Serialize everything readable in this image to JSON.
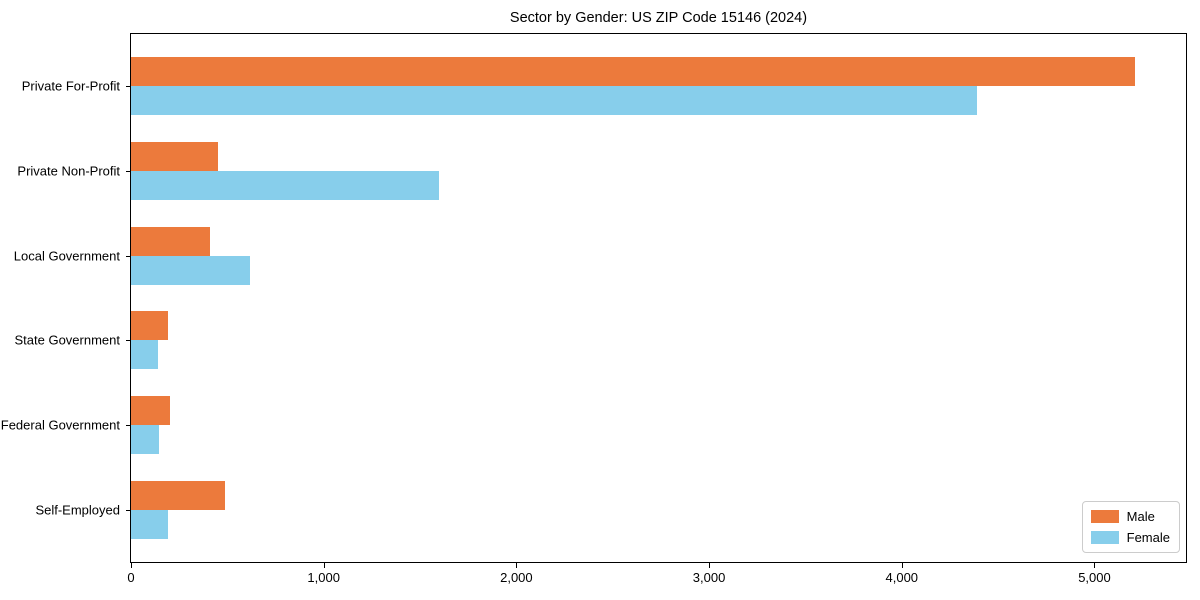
{
  "chart_data": {
    "type": "bar",
    "orientation": "horizontal",
    "title": "Sector by Gender: US ZIP Code 15146 (2024)",
    "categories": [
      "Private For-Profit",
      "Private Non-Profit",
      "Local Government",
      "State Government",
      "Federal Government",
      "Self-Employed"
    ],
    "series": [
      {
        "name": "Male",
        "color": "#ec7a3c",
        "values": [
          5210,
          450,
          410,
          190,
          200,
          490
        ]
      },
      {
        "name": "Female",
        "color": "#87ceeb",
        "values": [
          4390,
          1600,
          620,
          140,
          145,
          190
        ]
      }
    ],
    "xlim": [
      0,
      5475
    ],
    "x_ticks": [
      {
        "value": 0,
        "label": "0"
      },
      {
        "value": 1000,
        "label": "1,000"
      },
      {
        "value": 2000,
        "label": "2,000"
      },
      {
        "value": 3000,
        "label": "3,000"
      },
      {
        "value": 4000,
        "label": "4,000"
      },
      {
        "value": 5000,
        "label": "5,000"
      }
    ],
    "grid": false,
    "legend_position": "lower right"
  }
}
